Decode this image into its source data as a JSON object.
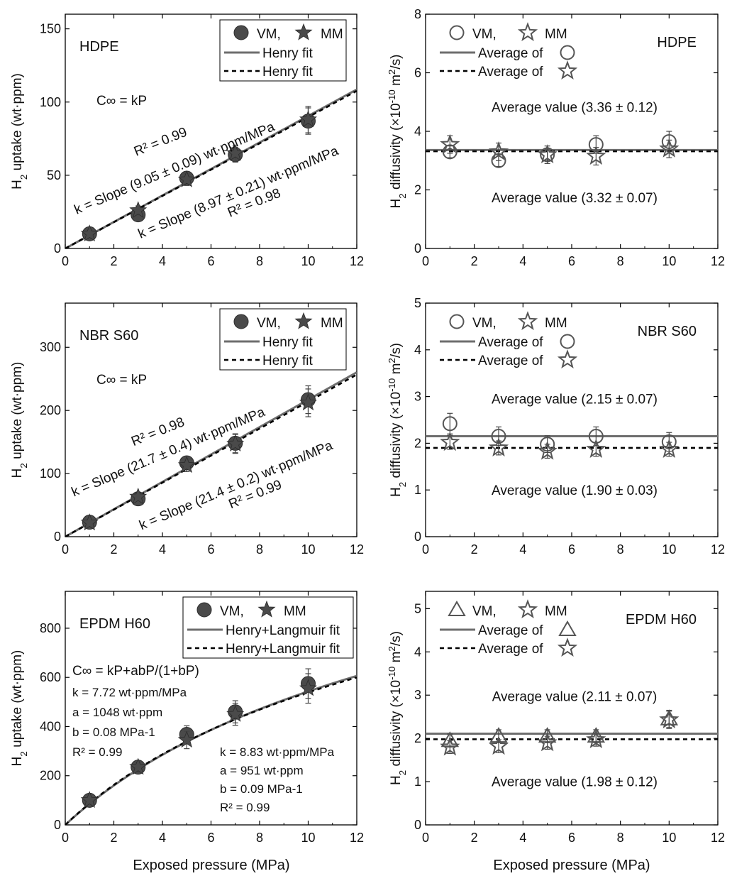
{
  "figure": {
    "shared_xlabel": "Exposed pressure (MPa)",
    "shared_xlabel_left": "Exposed pressure (MPa)",
    "shared_xlabel_right": "Exposed pressure (MPa)"
  },
  "colors": {
    "marker_fill": "#4a4a4a",
    "vm_line": "#6e6e6e",
    "mm_line": "#000000",
    "axis": "#000000",
    "error_bar": "#444444"
  },
  "chart_data": [
    {
      "id": "hdpe-uptake",
      "type": "scatter",
      "title": "HDPE",
      "ylabel": "H2 uptake (wt·ppm)",
      "ylabel_main": "H",
      "ylabel_sub": "2",
      "ylabel_rest": " uptake (wt·ppm)",
      "xlim": [
        0,
        12
      ],
      "ylim": [
        0,
        160
      ],
      "xticks": [
        0,
        2,
        4,
        6,
        8,
        10,
        12
      ],
      "yticks": [
        0,
        50,
        100,
        150
      ],
      "series": [
        {
          "name": "VM",
          "marker": "filled-circle",
          "x": [
            1,
            3,
            5,
            7,
            10
          ],
          "y": [
            10,
            23,
            48,
            64,
            87
          ],
          "err": [
            2,
            3,
            4,
            5,
            9
          ]
        },
        {
          "name": "MM",
          "marker": "filled-star",
          "x": [
            1,
            3,
            5,
            7,
            10
          ],
          "y": [
            10,
            26,
            47,
            65,
            88
          ],
          "err": [
            2,
            3,
            4,
            5,
            9
          ]
        }
      ],
      "fits": [
        {
          "label": "Henry fit",
          "style": "solid",
          "model": "henry",
          "k": 9.05
        },
        {
          "label": "Henry fit",
          "style": "dashed",
          "model": "henry",
          "k": 8.97
        }
      ],
      "legend": {
        "row1_a": "VM,",
        "row1_b": "MM",
        "row2": "Henry fit",
        "row3": "Henry fit"
      },
      "annotations": {
        "equation": "C∞ = kP",
        "fit1_r2": "R² = 0.99",
        "fit1_slope": "k = Slope (9.05 ± 0.09) wt·ppm/MPa",
        "fit2_slope": "k = Slope (8.97 ± 0.21) wt·ppm/MPa",
        "fit2_r2": "R² = 0.98"
      }
    },
    {
      "id": "hdpe-diffusivity",
      "type": "scatter",
      "title": "HDPE",
      "ylabel": "H2 diffusivity (×10-10 m2/s)",
      "xlim": [
        0,
        12
      ],
      "ylim": [
        0,
        8
      ],
      "xticks": [
        0,
        2,
        4,
        6,
        8,
        10,
        12
      ],
      "yticks": [
        0,
        2,
        4,
        6,
        8
      ],
      "series": [
        {
          "name": "VM",
          "marker": "open-circle",
          "x": [
            1,
            3,
            5,
            7,
            10
          ],
          "y": [
            3.3,
            3.0,
            3.2,
            3.55,
            3.65
          ],
          "err": [
            0.2,
            0.2,
            0.2,
            0.3,
            0.35
          ]
        },
        {
          "name": "MM",
          "marker": "open-star",
          "x": [
            1,
            3,
            5,
            7,
            10
          ],
          "y": [
            3.55,
            3.3,
            3.2,
            3.15,
            3.4
          ],
          "err": [
            0.3,
            0.3,
            0.3,
            0.3,
            0.3
          ]
        }
      ],
      "averages": [
        {
          "label": "Average of",
          "style": "solid",
          "value": 3.36
        },
        {
          "label": "Average of",
          "style": "dashed",
          "value": 3.32
        }
      ],
      "legend": {
        "row1_a": "VM,",
        "row1_b": "MM",
        "row2": "Average of",
        "row3": "Average of"
      },
      "annotations": {
        "avg1": "Average value (3.36 ± 0.12)",
        "avg2": "Average value (3.32 ± 0.07)"
      }
    },
    {
      "id": "nbr-uptake",
      "type": "scatter",
      "title": "NBR S60",
      "ylabel": "H2 uptake (wt·ppm)",
      "ylabel_main": "H",
      "ylabel_sub": "2",
      "ylabel_rest": " uptake (wt·ppm)",
      "xlim": [
        0,
        12
      ],
      "ylim": [
        0,
        370
      ],
      "xticks": [
        0,
        2,
        4,
        6,
        8,
        10,
        12
      ],
      "yticks": [
        0,
        100,
        200,
        300
      ],
      "series": [
        {
          "name": "VM",
          "marker": "filled-circle",
          "x": [
            1,
            3,
            5,
            7,
            10
          ],
          "y": [
            23,
            60,
            117,
            148,
            217
          ],
          "err": [
            4,
            6,
            10,
            15,
            22
          ]
        },
        {
          "name": "MM",
          "marker": "filled-star",
          "x": [
            1,
            3,
            5,
            7,
            10
          ],
          "y": [
            22,
            63,
            113,
            147,
            212
          ],
          "err": [
            4,
            6,
            10,
            15,
            22
          ]
        }
      ],
      "fits": [
        {
          "label": "Henry fit",
          "style": "solid",
          "model": "henry",
          "k": 21.7
        },
        {
          "label": "Henry fit",
          "style": "dashed",
          "model": "henry",
          "k": 21.4
        }
      ],
      "legend": {
        "row1_a": "VM,",
        "row1_b": "MM",
        "row2": "Henry fit",
        "row3": "Henry fit"
      },
      "annotations": {
        "equation": "C∞ = kP",
        "fit1_r2": "R² = 0.98",
        "fit1_slope": "k = Slope (21.7 ± 0.4) wt·ppm/MPa",
        "fit2_slope": "k = Slope (21.4 ± 0.2) wt·ppm/MPa",
        "fit2_r2": "R² = 0.99"
      }
    },
    {
      "id": "nbr-diffusivity",
      "type": "scatter",
      "title": "NBR S60",
      "ylabel": "H2 diffusivity (×10-10 m2/s)",
      "xlim": [
        0,
        12
      ],
      "ylim": [
        0,
        5
      ],
      "xticks": [
        0,
        2,
        4,
        6,
        8,
        10,
        12
      ],
      "yticks": [
        0,
        1,
        2,
        3,
        4,
        5
      ],
      "series": [
        {
          "name": "VM",
          "marker": "open-circle",
          "x": [
            1,
            3,
            5,
            7,
            10
          ],
          "y": [
            2.42,
            2.15,
            1.98,
            2.15,
            2.03
          ],
          "err": [
            0.22,
            0.2,
            0.18,
            0.2,
            0.2
          ]
        },
        {
          "name": "MM",
          "marker": "open-star",
          "x": [
            1,
            3,
            5,
            7,
            10
          ],
          "y": [
            2.02,
            1.9,
            1.83,
            1.87,
            1.87
          ],
          "err": [
            0.15,
            0.15,
            0.15,
            0.15,
            0.15
          ]
        }
      ],
      "averages": [
        {
          "label": "Average of",
          "style": "solid",
          "value": 2.15
        },
        {
          "label": "Average of",
          "style": "dashed",
          "value": 1.9
        }
      ],
      "legend": {
        "row1_a": "VM,",
        "row1_b": "MM",
        "row2": "Average of",
        "row3": "Average of"
      },
      "annotations": {
        "avg1": "Average value (2.15 ± 0.07)",
        "avg2": "Average value (1.90 ± 0.03)"
      }
    },
    {
      "id": "epdm-uptake",
      "type": "scatter",
      "title": "EPDM H60",
      "ylabel": "H2 uptake (wt·ppm)",
      "ylabel_main": "H",
      "ylabel_sub": "2",
      "ylabel_rest": " uptake (wt·ppm)",
      "xlim": [
        0,
        12
      ],
      "ylim": [
        0,
        950
      ],
      "xticks": [
        0,
        2,
        4,
        6,
        8,
        10,
        12
      ],
      "yticks": [
        0,
        200,
        400,
        600,
        800
      ],
      "series": [
        {
          "name": "VM",
          "marker": "filled-circle",
          "x": [
            1,
            3,
            5,
            7,
            10
          ],
          "y": [
            100,
            235,
            368,
            460,
            575
          ],
          "err": [
            10,
            20,
            35,
            45,
            60
          ]
        },
        {
          "name": "MM",
          "marker": "filled-star",
          "x": [
            1,
            3,
            5,
            7,
            10
          ],
          "y": [
            100,
            235,
            345,
            450,
            555
          ],
          "err": [
            10,
            20,
            35,
            45,
            60
          ]
        }
      ],
      "fits": [
        {
          "label": "Henry+Langmuir fit",
          "style": "solid",
          "model": "henry-langmuir",
          "k": 7.72,
          "a": 1048,
          "b": 0.08
        },
        {
          "label": "Henry+Langmuir fit",
          "style": "dashed",
          "model": "henry-langmuir",
          "k": 8.83,
          "a": 951,
          "b": 0.09
        }
      ],
      "legend": {
        "row1_a": "VM,",
        "row1_b": "MM",
        "row2": "Henry+Langmuir fit",
        "row3": "Henry+Langmuir fit"
      },
      "annotations": {
        "equation": "C∞ = kP+abP/(1+bP)",
        "fit1_k": "k = 7.72 wt·ppm/MPa",
        "fit1_a": "a = 1048 wt·ppm",
        "fit1_b": "b = 0.08 MPa-1",
        "fit1_r2": "R² = 0.99",
        "fit2_k": "k = 8.83 wt·ppm/MPa",
        "fit2_a": "a = 951 wt·ppm",
        "fit2_b": "b = 0.09 MPa-1",
        "fit2_r2": "R² = 0.99"
      }
    },
    {
      "id": "epdm-diffusivity",
      "type": "scatter",
      "title": "EPDM H60",
      "ylabel": "H2 diffusivity (×10-10 m2/s)",
      "xlim": [
        0,
        12
      ],
      "ylim": [
        0,
        5.4
      ],
      "xticks": [
        0,
        2,
        4,
        6,
        8,
        10,
        12
      ],
      "yticks": [
        0,
        1,
        2,
        3,
        4,
        5
      ],
      "series": [
        {
          "name": "VM",
          "marker": "open-triangle",
          "x": [
            1,
            3,
            5,
            7,
            10
          ],
          "y": [
            1.95,
            2.05,
            2.05,
            2.05,
            2.45
          ],
          "err": [
            0.15,
            0.15,
            0.15,
            0.15,
            0.2
          ]
        },
        {
          "name": "MM",
          "marker": "open-star",
          "x": [
            1,
            3,
            5,
            7,
            10
          ],
          "y": [
            1.8,
            1.82,
            1.9,
            1.97,
            2.43
          ],
          "err": [
            0.15,
            0.15,
            0.15,
            0.15,
            0.2
          ]
        }
      ],
      "averages": [
        {
          "label": "Average of",
          "style": "solid",
          "value": 2.11
        },
        {
          "label": "Average of",
          "style": "dashed",
          "value": 1.98
        }
      ],
      "legend": {
        "row1_a": "VM,",
        "row1_b": "MM",
        "row2": "Average of",
        "row3": "Average of"
      },
      "annotations": {
        "avg1": "Average value (2.11 ± 0.07)",
        "avg2": "Average value (1.98 ± 0.12)"
      }
    }
  ]
}
